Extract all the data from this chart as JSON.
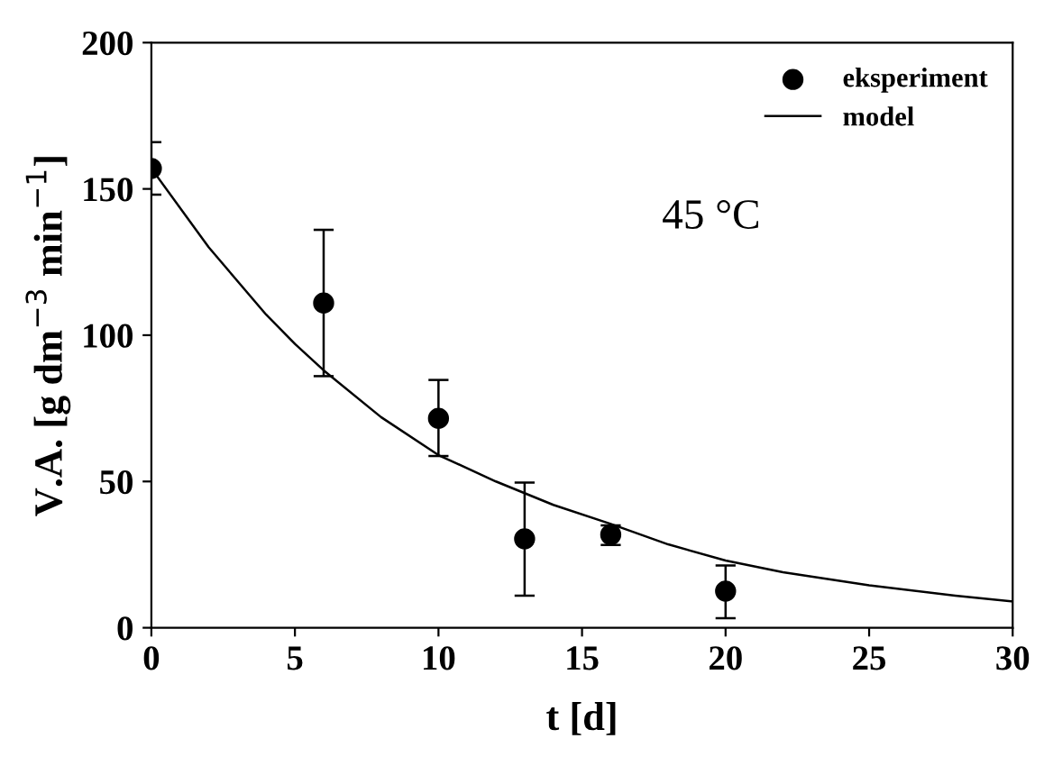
{
  "chart_data": {
    "type": "scatter",
    "xlabel": "t [d]",
    "ylabel": "V.A. [g dm$^{−3}$ min$^{−1}$]",
    "xlim": [
      0,
      30
    ],
    "ylim": [
      0,
      200
    ],
    "xticks": [
      0,
      5,
      10,
      15,
      20,
      25,
      30
    ],
    "yticks": [
      0,
      50,
      100,
      150,
      200
    ],
    "grid": false,
    "legend": "top right",
    "annotations": [
      "45 °C"
    ],
    "series": [
      {
        "name": "eksperiment",
        "color": "#000000",
        "marker": "circle",
        "x": [
          0,
          6,
          10,
          13,
          16,
          20
        ],
        "values": [
          157,
          111,
          71.6,
          30.4,
          31.8,
          12.5
        ],
        "errors": [
          [
            148,
            166
          ],
          [
            86,
            136
          ],
          [
            58.7,
            84.7
          ],
          [
            11,
            49.6
          ],
          [
            28.3,
            35
          ],
          [
            3.3,
            21.3
          ]
        ]
      },
      {
        "name": "model",
        "type": "line",
        "color": "#000000",
        "marker": "none",
        "line_style": "solid",
        "x": [
          0,
          2,
          4,
          5,
          6,
          8,
          10,
          12,
          13,
          14,
          16,
          18,
          20,
          22,
          25,
          28,
          30
        ],
        "values": [
          157,
          130,
          107,
          97,
          88,
          72,
          59,
          50,
          46,
          42,
          35.5,
          28.5,
          23,
          19,
          14.5,
          11,
          9
        ]
      }
    ]
  }
}
